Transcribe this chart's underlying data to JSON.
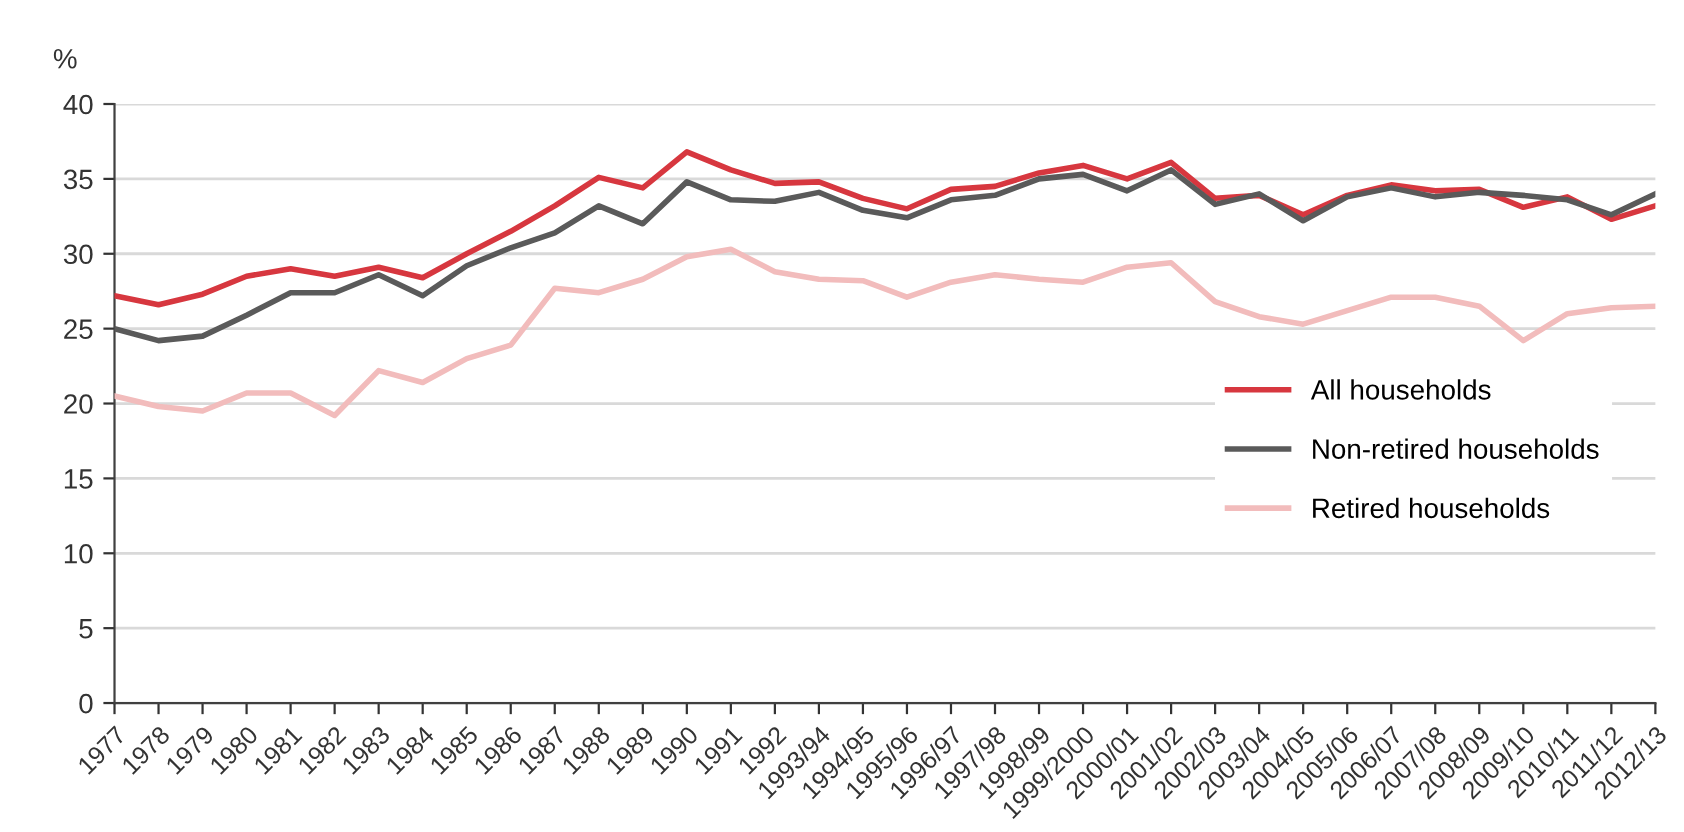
{
  "chart_data": {
    "type": "line",
    "ylabel": "%",
    "categories": [
      "1977",
      "1978",
      "1979",
      "1980",
      "1981",
      "1982",
      "1983",
      "1984",
      "1985",
      "1986",
      "1987",
      "1988",
      "1989",
      "1990",
      "1991",
      "1992",
      "1993/94",
      "1994/95",
      "1995/96",
      "1996/97",
      "1997/98",
      "1998/99",
      "1999/2000",
      "2000/01",
      "2001/02",
      "2002/03",
      "2003/04",
      "2004/05",
      "2005/06",
      "2006/07",
      "2007/08",
      "2008/09",
      "2009/10",
      "2010/11",
      "2011/12",
      "2012/13"
    ],
    "series": [
      {
        "name": "All households",
        "color": "#d7373f",
        "values": [
          27.2,
          26.6,
          27.3,
          28.5,
          29.0,
          28.5,
          29.1,
          28.4,
          30.0,
          31.5,
          33.2,
          35.1,
          34.4,
          36.8,
          35.6,
          34.7,
          34.8,
          33.7,
          33.0,
          34.3,
          34.5,
          35.4,
          35.9,
          35.0,
          36.1,
          33.7,
          33.9,
          32.6,
          33.9,
          34.6,
          34.2,
          34.3,
          33.1,
          33.8,
          32.3,
          33.2
        ]
      },
      {
        "name": "Non-retired households",
        "color": "#5a5a5a",
        "values": [
          25.0,
          24.2,
          24.5,
          25.9,
          27.4,
          27.4,
          28.6,
          27.2,
          29.2,
          30.4,
          31.4,
          33.2,
          32.0,
          34.8,
          33.6,
          33.5,
          34.1,
          32.9,
          32.4,
          33.6,
          33.9,
          35.0,
          35.3,
          34.2,
          35.6,
          33.3,
          34.0,
          32.2,
          33.8,
          34.4,
          33.8,
          34.1,
          33.9,
          33.6,
          32.6,
          34.0
        ]
      },
      {
        "name": "Retired households",
        "color": "#f2bcbc",
        "values": [
          20.5,
          19.8,
          19.5,
          20.7,
          20.7,
          19.2,
          22.2,
          21.4,
          23.0,
          23.9,
          27.7,
          27.4,
          28.3,
          29.8,
          30.3,
          28.8,
          28.3,
          28.2,
          27.1,
          28.1,
          28.6,
          28.3,
          28.1,
          29.1,
          29.4,
          26.8,
          25.8,
          25.3,
          26.2,
          27.1,
          27.1,
          26.5,
          24.2,
          26.0,
          26.4,
          26.5
        ]
      }
    ],
    "ylim": [
      0,
      40
    ],
    "yticks": [
      0,
      5,
      10,
      15,
      20,
      25,
      30,
      35,
      40
    ],
    "grid": "y",
    "legend": "right",
    "marker": "none",
    "line_style": "solid"
  }
}
